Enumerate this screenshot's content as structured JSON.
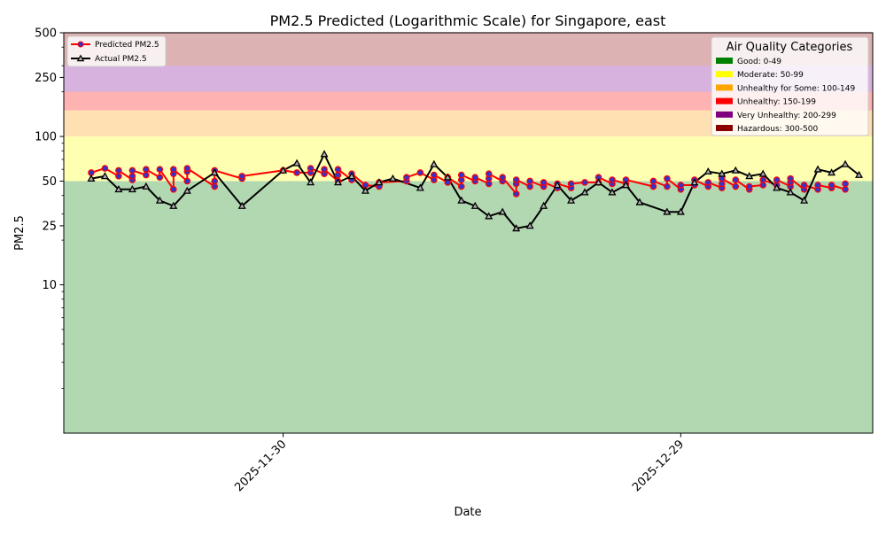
{
  "chart_data": {
    "type": "line",
    "title": "PM2.5 Predicted (Logarithmic Scale) for Singapore, east",
    "xlabel": "Date",
    "ylabel": "PM2.5",
    "yscale": "log",
    "ylim": [
      1,
      500
    ],
    "xlim": [
      "2025-11-14",
      "2026-01-12"
    ],
    "grid": false,
    "y_ticks": [
      {
        "value": 10,
        "label": "10"
      },
      {
        "value": 25,
        "label": "25"
      },
      {
        "value": 50,
        "label": "50"
      },
      {
        "value": 100,
        "label": "100"
      },
      {
        "value": 250,
        "label": "250"
      },
      {
        "value": 500,
        "label": "500"
      }
    ],
    "x_ticks": [
      {
        "value": "2025-11-30",
        "label": "2025-11-30"
      },
      {
        "value": "2025-12-29",
        "label": "2025-12-29"
      }
    ],
    "bands": [
      {
        "from": 1,
        "to": 50,
        "color": "#b2d8b2"
      },
      {
        "from": 50,
        "to": 100,
        "color": "#ffffb2"
      },
      {
        "from": 100,
        "to": 150,
        "color": "#ffe0b2"
      },
      {
        "from": 150,
        "to": 200,
        "color": "#ffb2b2"
      },
      {
        "from": 200,
        "to": 300,
        "color": "#d8b2de"
      },
      {
        "from": 300,
        "to": 500,
        "color": "#ddb2b2"
      }
    ],
    "legend_series": {
      "placement": "top-left",
      "entries": [
        {
          "label": "Predicted PM2.5",
          "color": "#ff0000",
          "marker_color": "#3333cc",
          "marker": "circle"
        },
        {
          "label": "Actual PM2.5",
          "color": "#000000",
          "marker": "triangle"
        }
      ]
    },
    "legend_categories": {
      "placement": "top-right",
      "title": "Air Quality Categories",
      "entries": [
        {
          "label": "Good: 0-49",
          "color": "#008000"
        },
        {
          "label": "Moderate: 50-99",
          "color": "#ffff00"
        },
        {
          "label": "Unhealthy for Some: 100-149",
          "color": "#ffa500"
        },
        {
          "label": "Unhealthy: 150-199",
          "color": "#ff0000"
        },
        {
          "label": "Very Unhealthy: 200-299",
          "color": "#800080"
        },
        {
          "label": "Hazardous: 300-500",
          "color": "#8b0000"
        }
      ]
    },
    "series": [
      {
        "name": "Predicted PM2.5",
        "color": "#ff0000",
        "marker_color": "#3333cc",
        "points": [
          [
            "2025-11-16",
            57
          ],
          [
            "2025-11-17",
            61
          ],
          [
            "2025-11-18",
            54
          ],
          [
            "2025-11-18",
            59
          ],
          [
            "2025-11-19",
            51
          ],
          [
            "2025-11-19",
            54
          ],
          [
            "2025-11-19",
            59
          ],
          [
            "2025-11-20",
            55
          ],
          [
            "2025-11-20",
            60
          ],
          [
            "2025-11-21",
            53
          ],
          [
            "2025-11-21",
            60
          ],
          [
            "2025-11-22",
            44
          ],
          [
            "2025-11-22",
            56
          ],
          [
            "2025-11-22",
            60
          ],
          [
            "2025-11-23",
            50
          ],
          [
            "2025-11-23",
            58
          ],
          [
            "2025-11-23",
            61
          ],
          [
            "2025-11-25",
            46
          ],
          [
            "2025-11-25",
            50
          ],
          [
            "2025-11-25",
            59
          ],
          [
            "2025-11-27",
            52
          ],
          [
            "2025-11-27",
            54
          ],
          [
            "2025-11-30",
            59
          ],
          [
            "2025-12-01",
            57
          ],
          [
            "2025-12-02",
            57
          ],
          [
            "2025-12-02",
            61
          ],
          [
            "2025-12-03",
            56
          ],
          [
            "2025-12-03",
            60
          ],
          [
            "2025-12-04",
            50
          ],
          [
            "2025-12-04",
            55
          ],
          [
            "2025-12-04",
            60
          ],
          [
            "2025-12-05",
            51
          ],
          [
            "2025-12-05",
            56
          ],
          [
            "2025-12-06",
            47
          ],
          [
            "2025-12-07",
            46
          ],
          [
            "2025-12-07",
            49
          ],
          [
            "2025-12-09",
            50
          ],
          [
            "2025-12-09",
            53
          ],
          [
            "2025-12-10",
            57
          ],
          [
            "2025-12-11",
            51
          ],
          [
            "2025-12-11",
            55
          ],
          [
            "2025-12-12",
            49
          ],
          [
            "2025-12-12",
            53
          ],
          [
            "2025-12-13",
            46
          ],
          [
            "2025-12-13",
            51
          ],
          [
            "2025-12-13",
            55
          ],
          [
            "2025-12-14",
            50
          ],
          [
            "2025-12-14",
            53
          ],
          [
            "2025-12-15",
            48
          ],
          [
            "2025-12-15",
            52
          ],
          [
            "2025-12-15",
            56
          ],
          [
            "2025-12-16",
            50
          ],
          [
            "2025-12-16",
            53
          ],
          [
            "2025-12-17",
            41
          ],
          [
            "2025-12-17",
            48
          ],
          [
            "2025-12-17",
            51
          ],
          [
            "2025-12-18",
            46
          ],
          [
            "2025-12-18",
            50
          ],
          [
            "2025-12-19",
            46
          ],
          [
            "2025-12-19",
            49
          ],
          [
            "2025-12-20",
            45
          ],
          [
            "2025-12-20",
            48
          ],
          [
            "2025-12-21",
            45
          ],
          [
            "2025-12-21",
            48
          ],
          [
            "2025-12-22",
            49
          ],
          [
            "2025-12-23",
            49
          ],
          [
            "2025-12-23",
            53
          ],
          [
            "2025-12-24",
            48
          ],
          [
            "2025-12-24",
            51
          ],
          [
            "2025-12-25",
            48
          ],
          [
            "2025-12-25",
            51
          ],
          [
            "2025-12-27",
            46
          ],
          [
            "2025-12-27",
            50
          ],
          [
            "2025-12-28",
            46
          ],
          [
            "2025-12-28",
            52
          ],
          [
            "2025-12-29",
            44
          ],
          [
            "2025-12-29",
            47
          ],
          [
            "2025-12-30",
            47
          ],
          [
            "2025-12-30",
            51
          ],
          [
            "2025-12-31",
            46
          ],
          [
            "2025-12-31",
            49
          ],
          [
            "2026-01-01",
            45
          ],
          [
            "2026-01-01",
            48
          ],
          [
            "2026-01-01",
            52
          ],
          [
            "2026-01-02",
            46
          ],
          [
            "2026-01-02",
            51
          ],
          [
            "2026-01-03",
            44
          ],
          [
            "2026-01-03",
            46
          ],
          [
            "2026-01-04",
            47
          ],
          [
            "2026-01-04",
            51
          ],
          [
            "2026-01-05",
            47
          ],
          [
            "2026-01-05",
            51
          ],
          [
            "2026-01-06",
            46
          ],
          [
            "2026-01-06",
            49
          ],
          [
            "2026-01-06",
            52
          ],
          [
            "2026-01-07",
            44
          ],
          [
            "2026-01-07",
            47
          ],
          [
            "2026-01-08",
            44
          ],
          [
            "2026-01-08",
            47
          ],
          [
            "2026-01-09",
            45
          ],
          [
            "2026-01-09",
            47
          ],
          [
            "2026-01-10",
            44
          ],
          [
            "2026-01-10",
            48
          ]
        ]
      },
      {
        "name": "Actual PM2.5",
        "color": "#000000",
        "points": [
          [
            "2025-11-16",
            52
          ],
          [
            "2025-11-17",
            54
          ],
          [
            "2025-11-18",
            44
          ],
          [
            "2025-11-19",
            44
          ],
          [
            "2025-11-20",
            46
          ],
          [
            "2025-11-21",
            37
          ],
          [
            "2025-11-22",
            34
          ],
          [
            "2025-11-23",
            43
          ],
          [
            "2025-11-25",
            57
          ],
          [
            "2025-11-27",
            34
          ],
          [
            "2025-11-30",
            59
          ],
          [
            "2025-12-01",
            66
          ],
          [
            "2025-12-02",
            49
          ],
          [
            "2025-12-03",
            76
          ],
          [
            "2025-12-04",
            49
          ],
          [
            "2025-12-05",
            54
          ],
          [
            "2025-12-06",
            43
          ],
          [
            "2025-12-07",
            49
          ],
          [
            "2025-12-08",
            52
          ],
          [
            "2025-12-10",
            45
          ],
          [
            "2025-12-11",
            65
          ],
          [
            "2025-12-12",
            53
          ],
          [
            "2025-12-13",
            37
          ],
          [
            "2025-12-14",
            34
          ],
          [
            "2025-12-15",
            29
          ],
          [
            "2025-12-16",
            31
          ],
          [
            "2025-12-17",
            24
          ],
          [
            "2025-12-18",
            25
          ],
          [
            "2025-12-19",
            34
          ],
          [
            "2025-12-20",
            47
          ],
          [
            "2025-12-21",
            37
          ],
          [
            "2025-12-22",
            42
          ],
          [
            "2025-12-23",
            49
          ],
          [
            "2025-12-24",
            42
          ],
          [
            "2025-12-25",
            47
          ],
          [
            "2025-12-26",
            36
          ],
          [
            "2025-12-28",
            31
          ],
          [
            "2025-12-29",
            31
          ],
          [
            "2025-12-30",
            49
          ],
          [
            "2025-12-31",
            58
          ],
          [
            "2026-01-01",
            56
          ],
          [
            "2026-01-02",
            59
          ],
          [
            "2026-01-03",
            54
          ],
          [
            "2026-01-04",
            56
          ],
          [
            "2026-01-05",
            45
          ],
          [
            "2026-01-06",
            42
          ],
          [
            "2026-01-07",
            37
          ],
          [
            "2026-01-08",
            60
          ],
          [
            "2026-01-09",
            57
          ],
          [
            "2026-01-10",
            65
          ],
          [
            "2026-01-11",
            55
          ]
        ]
      }
    ]
  }
}
